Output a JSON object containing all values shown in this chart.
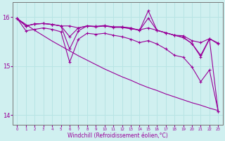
{
  "xlabel": "Windchill (Refroidissement éolien,°C)",
  "x": [
    0,
    1,
    2,
    3,
    4,
    5,
    6,
    7,
    8,
    9,
    10,
    11,
    12,
    13,
    14,
    15,
    16,
    17,
    18,
    19,
    20,
    21,
    22,
    23
  ],
  "series1": [
    15.97,
    15.82,
    15.86,
    15.87,
    15.85,
    15.82,
    15.82,
    15.78,
    15.82,
    15.81,
    15.82,
    15.79,
    15.79,
    15.76,
    15.74,
    15.78,
    15.73,
    15.68,
    15.63,
    15.62,
    15.52,
    15.48,
    15.56,
    15.45
  ],
  "series2": [
    15.97,
    15.82,
    15.86,
    15.87,
    15.85,
    15.82,
    15.6,
    15.78,
    15.82,
    15.81,
    15.83,
    15.8,
    15.8,
    15.77,
    15.73,
    15.98,
    15.73,
    15.68,
    15.63,
    15.59,
    15.46,
    15.22,
    15.56,
    15.47
  ],
  "series3": [
    15.97,
    15.82,
    15.86,
    15.87,
    15.85,
    15.82,
    15.35,
    15.72,
    15.82,
    15.8,
    15.82,
    15.8,
    15.8,
    15.78,
    15.73,
    16.13,
    15.73,
    15.68,
    15.63,
    15.58,
    15.46,
    15.19,
    15.55,
    14.07
  ],
  "series4": [
    15.97,
    15.72,
    15.75,
    15.78,
    15.75,
    15.7,
    15.08,
    15.55,
    15.67,
    15.65,
    15.67,
    15.63,
    15.6,
    15.55,
    15.48,
    15.52,
    15.45,
    15.35,
    15.22,
    15.18,
    14.98,
    14.68,
    14.92,
    14.07
  ],
  "smooth_line": [
    15.97,
    15.85,
    15.73,
    15.62,
    15.51,
    15.41,
    15.31,
    15.21,
    15.12,
    15.03,
    14.94,
    14.86,
    14.78,
    14.71,
    14.63,
    14.56,
    14.5,
    14.43,
    14.37,
    14.31,
    14.25,
    14.2,
    14.14,
    14.09
  ],
  "line_color": "#990099",
  "bg_color": "#d0f0f0",
  "grid_color": "#b8e4e4",
  "ylim": [
    13.8,
    16.3
  ],
  "yticks": [
    14,
    15,
    16
  ],
  "xlim": [
    -0.5,
    23.5
  ]
}
